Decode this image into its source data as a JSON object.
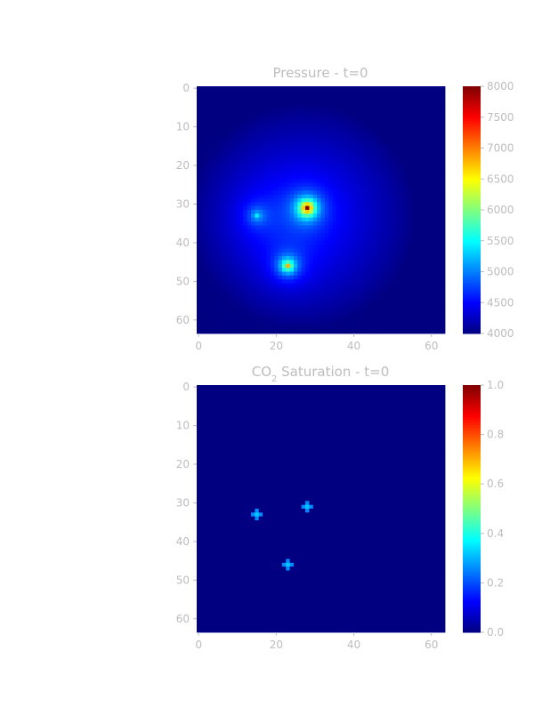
{
  "chart_data": [
    {
      "type": "heatmap",
      "title": "Pressure - t=0",
      "grid_size": [
        64,
        64
      ],
      "x_ticks": [
        0,
        20,
        40,
        60
      ],
      "y_ticks": [
        0,
        10,
        20,
        30,
        40,
        50,
        60
      ],
      "xlim": [
        0,
        64
      ],
      "ylim": [
        64,
        0
      ],
      "colormap": "jet",
      "colorbar": {
        "min": 4000,
        "max": 8000,
        "ticks": [
          4000,
          4500,
          5000,
          5500,
          6000,
          6500,
          7000,
          7500,
          8000
        ]
      },
      "background_value": 4000,
      "field": {
        "plume": {
          "center": [
            27,
            33
          ],
          "radius": 29,
          "value": 4550
        },
        "wells": [
          {
            "x": 28,
            "y": 31,
            "value": 8000
          },
          {
            "x": 23,
            "y": 46,
            "value": 6700
          },
          {
            "x": 15,
            "y": 33,
            "value": 5300
          }
        ]
      }
    },
    {
      "type": "heatmap",
      "title_prefix": "CO",
      "title_sub": "2",
      "title_suffix": " Saturation - t=0",
      "grid_size": [
        64,
        64
      ],
      "x_ticks": [
        0,
        20,
        40,
        60
      ],
      "y_ticks": [
        0,
        10,
        20,
        30,
        40,
        50,
        60
      ],
      "xlim": [
        0,
        64
      ],
      "ylim": [
        64,
        0
      ],
      "colormap": "jet",
      "colorbar": {
        "min": 0.0,
        "max": 1.0,
        "ticks": [
          0.0,
          0.2,
          0.4,
          0.6,
          0.8,
          1.0
        ]
      },
      "background_value": 0.0,
      "wells": [
        {
          "x": 28,
          "y": 31,
          "center": 0.32,
          "arm": 0.26
        },
        {
          "x": 23,
          "y": 46,
          "center": 0.32,
          "arm": 0.26
        },
        {
          "x": 15,
          "y": 33,
          "center": 0.32,
          "arm": 0.26
        }
      ]
    }
  ]
}
